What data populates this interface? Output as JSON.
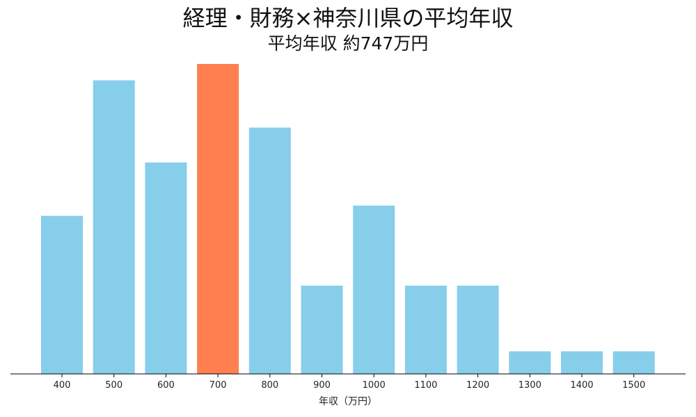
{
  "chart_data": {
    "type": "bar",
    "title": "経理・財務×神奈川県の平均年収",
    "subtitle": "平均年収 約747万円",
    "xlabel": "年収（万円）",
    "ylabel": "",
    "categories": [
      "400",
      "500",
      "600",
      "700",
      "800",
      "900",
      "1000",
      "1100",
      "1200",
      "1300",
      "1400",
      "1500"
    ],
    "values": [
      7.7,
      14.3,
      10.3,
      15.1,
      12.0,
      4.3,
      8.2,
      4.3,
      4.3,
      1.1,
      1.1,
      1.1
    ],
    "highlight_category": "700",
    "ylim": [
      0,
      15.1
    ],
    "grid": false,
    "colors": {
      "bar": "#87CEEB",
      "highlight": "#FF7F50",
      "axis": "#000000"
    }
  }
}
